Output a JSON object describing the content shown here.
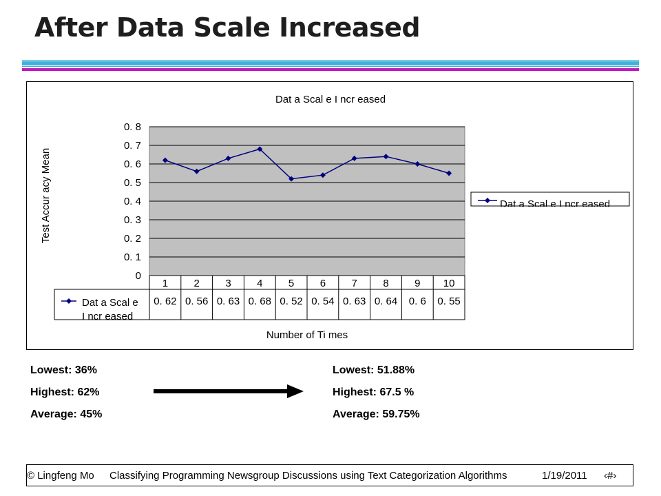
{
  "slide": {
    "title": "After Data Scale Increased"
  },
  "theme": {
    "rule_blue": "#3fb2db",
    "rule_pink": "#c218bf",
    "plot_bg": "#c0c0c0",
    "series_color": "#000080"
  },
  "chart_data": {
    "type": "line",
    "title": "Dat a Scal e I ncr eased",
    "xlabel": "Number of Ti mes",
    "ylabel": "Test Accur acy Mean",
    "categories": [
      "1",
      "2",
      "3",
      "4",
      "5",
      "6",
      "7",
      "8",
      "9",
      "10"
    ],
    "ylim": [
      0,
      0.8
    ],
    "yticks": [
      "0. 8",
      "0. 7",
      "0. 6",
      "0. 5",
      "0. 4",
      "0. 3",
      "0. 2",
      "0. 1",
      "0"
    ],
    "ytick_values": [
      0.8,
      0.7,
      0.6,
      0.5,
      0.4,
      0.3,
      0.2,
      0.1,
      0
    ],
    "grid": true,
    "legend_position": "right",
    "series": [
      {
        "name": "Dat a Scal e I ncr eased",
        "values": [
          0.62,
          0.56,
          0.63,
          0.68,
          0.52,
          0.54,
          0.63,
          0.64,
          0.6,
          0.55
        ]
      }
    ],
    "data_table": {
      "row_label_line1": "Dat a Scal e",
      "row_label_line2": "I ncr eased",
      "cells": [
        "0. 62",
        "0. 56",
        "0. 63",
        "0. 68",
        "0. 52",
        "0. 54",
        "0. 63",
        "0. 64",
        "0. 6",
        "0. 55"
      ]
    }
  },
  "stats": {
    "before": {
      "lowest": "Lowest: 36%",
      "highest": "Highest: 62%",
      "average": "Average: 45%"
    },
    "after": {
      "lowest": "Lowest: 51.88%",
      "highest": "Highest: 67.5 %",
      "average": "Average: 59.75%"
    },
    "arrow_icon": "right-arrow-icon"
  },
  "footer": {
    "copyright": "© Lingfeng Mo",
    "course": "Classifying Programming Newsgroup Discussions using Text Categorization Algorithms",
    "date": "1/19/2011",
    "page": "‹#›"
  }
}
